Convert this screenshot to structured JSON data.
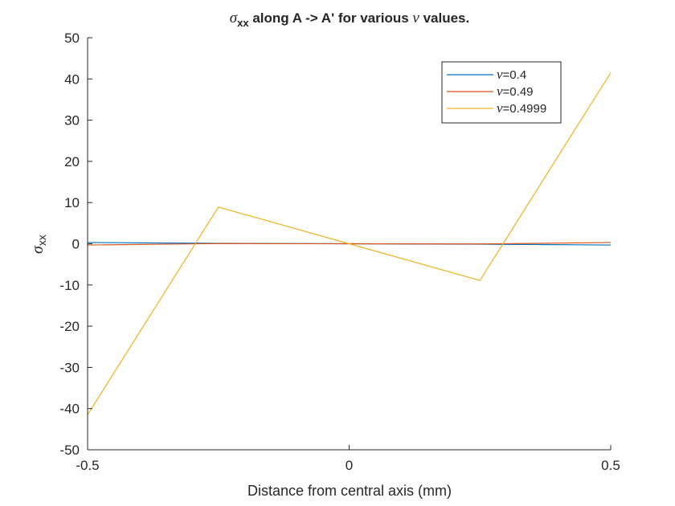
{
  "chart_data": {
    "type": "line",
    "title_parts": [
      "σ",
      "xx",
      " along A -> A' for various ",
      "ν",
      " values."
    ],
    "xlabel": "Distance from central axis (mm)",
    "ylabel_parts": [
      "σ",
      "xx"
    ],
    "xlim": [
      -0.5,
      0.5
    ],
    "ylim": [
      -50,
      50
    ],
    "xticks": [
      -0.5,
      0,
      0.5
    ],
    "xtick_labels": [
      "-0.5",
      "0",
      "0.5"
    ],
    "yticks": [
      -50,
      -40,
      -30,
      -20,
      -10,
      0,
      10,
      20,
      30,
      40,
      50
    ],
    "ytick_labels": [
      "-50",
      "-40",
      "-30",
      "-20",
      "-10",
      "0",
      "10",
      "20",
      "30",
      "40",
      "50"
    ],
    "grid": false,
    "legend_position": "top-right",
    "series": [
      {
        "name_parts": [
          "ν",
          "=0.4"
        ],
        "color": "#0072BD",
        "x": [
          -0.5,
          -0.25,
          0,
          0.25,
          0.5
        ],
        "y": [
          0.3,
          0.1,
          0,
          -0.1,
          -0.3
        ]
      },
      {
        "name_parts": [
          "ν",
          "=0.49"
        ],
        "color": "#D95319",
        "x": [
          -0.5,
          -0.25,
          0,
          0.25,
          0.5
        ],
        "y": [
          -0.3,
          0.05,
          0,
          -0.05,
          0.3
        ]
      },
      {
        "name_parts": [
          "ν",
          "=0.4999"
        ],
        "color": "#EDB120",
        "x": [
          -0.5,
          -0.25,
          0,
          0.25,
          0.5
        ],
        "y": [
          -41.5,
          8.9,
          0,
          -8.9,
          41.5
        ]
      }
    ]
  }
}
